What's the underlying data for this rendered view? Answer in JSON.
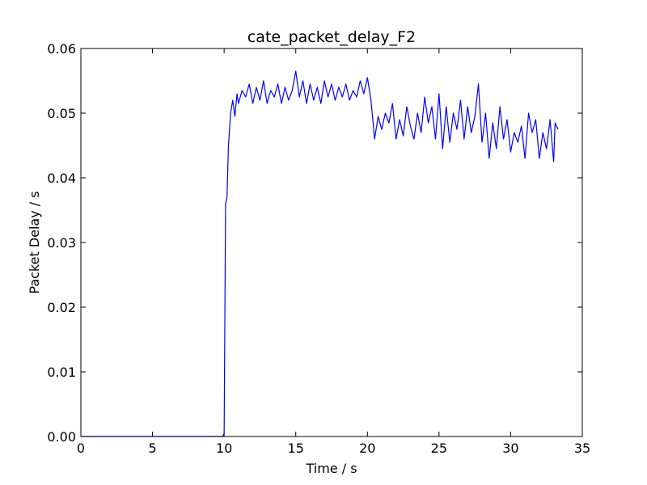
{
  "chart_data": {
    "type": "line",
    "title": "cate_packet_delay_F2",
    "x_label": "Time / s",
    "y_label": "Packet Delay / s",
    "xlim": [
      0,
      35
    ],
    "ylim": [
      0,
      0.06
    ],
    "xticks": [
      0,
      5,
      10,
      15,
      20,
      25,
      30,
      35
    ],
    "yticks": [
      {
        "value": 0,
        "label": "0.00"
      },
      0.01,
      0.02,
      0.03,
      0.04,
      0.05,
      0.06
    ],
    "grid": false,
    "series": [
      {
        "name": "F2",
        "color": "#0000ff",
        "x": [
          0,
          9.9,
          10.0,
          10.1,
          10.2,
          10.3,
          10.45,
          10.6,
          10.75,
          10.9,
          11.0,
          11.25,
          11.5,
          11.75,
          12.0,
          12.25,
          12.5,
          12.75,
          13.0,
          13.25,
          13.5,
          13.75,
          14.0,
          14.25,
          14.5,
          14.75,
          15.0,
          15.25,
          15.5,
          15.75,
          16.0,
          16.25,
          16.5,
          16.75,
          17.0,
          17.25,
          17.5,
          17.75,
          18.0,
          18.25,
          18.5,
          18.75,
          19.0,
          19.25,
          19.5,
          19.75,
          20.0,
          20.25,
          20.5,
          20.75,
          21.0,
          21.25,
          21.5,
          21.75,
          22.0,
          22.25,
          22.5,
          22.75,
          23.0,
          23.25,
          23.5,
          23.75,
          24.0,
          24.25,
          24.5,
          24.75,
          25.0,
          25.25,
          25.5,
          25.75,
          26.0,
          26.25,
          26.5,
          26.75,
          27.0,
          27.25,
          27.5,
          27.75,
          28.0,
          28.25,
          28.5,
          28.75,
          29.0,
          29.25,
          29.5,
          29.75,
          30.0,
          30.25,
          30.5,
          30.75,
          31.0,
          31.25,
          31.5,
          31.75,
          32.0,
          32.25,
          32.5,
          32.75,
          33.0,
          33.1,
          33.3
        ],
        "values": [
          0,
          0,
          0.0005,
          0.036,
          0.037,
          0.045,
          0.05,
          0.052,
          0.0495,
          0.053,
          0.0515,
          0.0535,
          0.0525,
          0.0545,
          0.0515,
          0.054,
          0.052,
          0.055,
          0.0515,
          0.0535,
          0.0525,
          0.0545,
          0.0515,
          0.054,
          0.052,
          0.0535,
          0.0565,
          0.0525,
          0.055,
          0.0515,
          0.0545,
          0.052,
          0.054,
          0.0515,
          0.055,
          0.0525,
          0.0545,
          0.052,
          0.054,
          0.0525,
          0.0545,
          0.052,
          0.0535,
          0.0525,
          0.055,
          0.053,
          0.0555,
          0.052,
          0.046,
          0.0495,
          0.0475,
          0.05,
          0.0485,
          0.0515,
          0.046,
          0.049,
          0.0465,
          0.051,
          0.048,
          0.046,
          0.05,
          0.047,
          0.0525,
          0.0485,
          0.051,
          0.046,
          0.053,
          0.0445,
          0.051,
          0.0455,
          0.05,
          0.0475,
          0.052,
          0.046,
          0.051,
          0.047,
          0.0495,
          0.0545,
          0.0455,
          0.05,
          0.043,
          0.0485,
          0.0445,
          0.051,
          0.046,
          0.049,
          0.044,
          0.047,
          0.0455,
          0.048,
          0.043,
          0.05,
          0.047,
          0.049,
          0.043,
          0.047,
          0.0445,
          0.049,
          0.0425,
          0.0485,
          0.0475
        ]
      }
    ]
  }
}
